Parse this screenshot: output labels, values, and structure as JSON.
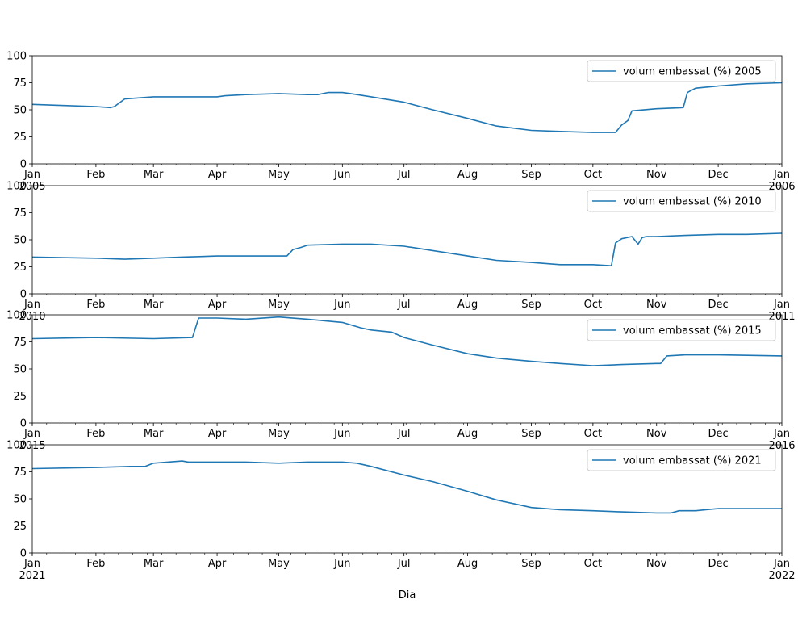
{
  "colors": {
    "line": "#1f77b4",
    "axes": "#000000",
    "legend_border": "#cccccc"
  },
  "xlabel": "Dia",
  "month_labels": [
    "Jan",
    "Feb",
    "Mar",
    "Apr",
    "May",
    "Jun",
    "Jul",
    "Aug",
    "Sep",
    "Oct",
    "Nov",
    "Dec",
    "Jan"
  ],
  "chart_data": [
    {
      "type": "line",
      "xlim": [
        "2005-01-01",
        "2006-01-01"
      ],
      "ylim": [
        0,
        100
      ],
      "yticks": [
        0,
        25,
        50,
        75,
        100
      ],
      "year_labels": [
        "2005",
        "2006"
      ],
      "legend_position": "top-right",
      "series": [
        {
          "name": "volum embassat (%) 2005",
          "x": [
            "2005-01-01",
            "2005-01-15",
            "2005-02-01",
            "2005-02-08",
            "2005-02-10",
            "2005-02-15",
            "2005-03-01",
            "2005-03-15",
            "2005-04-01",
            "2005-04-05",
            "2005-04-15",
            "2005-05-01",
            "2005-05-15",
            "2005-05-20",
            "2005-05-25",
            "2005-06-01",
            "2005-06-05",
            "2005-06-15",
            "2005-07-01",
            "2005-07-15",
            "2005-08-01",
            "2005-08-15",
            "2005-09-01",
            "2005-09-15",
            "2005-10-01",
            "2005-10-08",
            "2005-10-10",
            "2005-10-12",
            "2005-10-15",
            "2005-10-18",
            "2005-10-20",
            "2005-11-01",
            "2005-11-14",
            "2005-11-16",
            "2005-11-20",
            "2005-12-01",
            "2005-12-15",
            "2006-01-01"
          ],
          "y": [
            55,
            54,
            53,
            52,
            53,
            60,
            62,
            62,
            62,
            63,
            64,
            65,
            64,
            64,
            66,
            66,
            65,
            62,
            57,
            50,
            42,
            35,
            31,
            30,
            29,
            29,
            29,
            29,
            36,
            40,
            49,
            51,
            52,
            66,
            70,
            72,
            74,
            75
          ]
        }
      ]
    },
    {
      "type": "line",
      "xlim": [
        "2010-01-01",
        "2011-01-01"
      ],
      "ylim": [
        0,
        100
      ],
      "yticks": [
        0,
        25,
        50,
        75,
        100
      ],
      "year_labels": [
        "2010",
        "2011"
      ],
      "legend_position": "top-right",
      "series": [
        {
          "name": "volum embassat (%) 2010",
          "x": [
            "2010-01-01",
            "2010-02-01",
            "2010-02-15",
            "2010-03-01",
            "2010-03-15",
            "2010-04-01",
            "2010-04-15",
            "2010-05-01",
            "2010-05-05",
            "2010-05-08",
            "2010-05-12",
            "2010-05-15",
            "2010-06-01",
            "2010-06-15",
            "2010-07-01",
            "2010-07-15",
            "2010-08-01",
            "2010-08-15",
            "2010-09-01",
            "2010-09-15",
            "2010-10-01",
            "2010-10-10",
            "2010-10-12",
            "2010-10-15",
            "2010-10-20",
            "2010-10-23",
            "2010-10-25",
            "2010-10-27",
            "2010-11-01",
            "2010-11-15",
            "2010-12-01",
            "2010-12-15",
            "2011-01-01"
          ],
          "y": [
            34,
            33,
            32,
            33,
            34,
            35,
            35,
            35,
            35,
            41,
            43,
            45,
            46,
            46,
            44,
            40,
            35,
            31,
            29,
            27,
            27,
            26,
            47,
            51,
            53,
            46,
            52,
            53,
            53,
            54,
            55,
            55,
            56
          ]
        }
      ]
    },
    {
      "type": "line",
      "xlim": [
        "2015-01-01",
        "2016-01-01"
      ],
      "ylim": [
        0,
        100
      ],
      "yticks": [
        0,
        25,
        50,
        75,
        100
      ],
      "year_labels": [
        "2015",
        "2016"
      ],
      "legend_position": "top-right",
      "series": [
        {
          "name": "volum embassat (%) 2015",
          "x": [
            "2015-01-01",
            "2015-02-01",
            "2015-03-01",
            "2015-03-20",
            "2015-03-23",
            "2015-03-27",
            "2015-04-01",
            "2015-04-15",
            "2015-05-01",
            "2015-05-15",
            "2015-06-01",
            "2015-06-10",
            "2015-06-15",
            "2015-06-25",
            "2015-07-01",
            "2015-07-15",
            "2015-08-01",
            "2015-08-15",
            "2015-09-01",
            "2015-09-15",
            "2015-10-01",
            "2015-10-15",
            "2015-11-01",
            "2015-11-03",
            "2015-11-06",
            "2015-11-15",
            "2015-12-01",
            "2016-01-01"
          ],
          "y": [
            78,
            79,
            78,
            79,
            97,
            97,
            97,
            96,
            98,
            96,
            93,
            88,
            86,
            84,
            79,
            72,
            64,
            60,
            57,
            55,
            53,
            54,
            55,
            55,
            62,
            63,
            63,
            62
          ]
        }
      ]
    },
    {
      "type": "line",
      "xlim": [
        "2021-01-01",
        "2022-01-01"
      ],
      "ylim": [
        0,
        100
      ],
      "yticks": [
        0,
        25,
        50,
        75,
        100
      ],
      "year_labels": [
        "2021",
        "2022"
      ],
      "legend_position": "top-right",
      "series": [
        {
          "name": "volum embassat (%) 2021",
          "x": [
            "2021-01-01",
            "2021-02-01",
            "2021-02-18",
            "2021-02-25",
            "2021-03-01",
            "2021-03-15",
            "2021-03-18",
            "2021-04-01",
            "2021-04-15",
            "2021-05-01",
            "2021-05-15",
            "2021-06-01",
            "2021-06-08",
            "2021-06-15",
            "2021-07-01",
            "2021-07-15",
            "2021-08-01",
            "2021-08-15",
            "2021-09-01",
            "2021-09-15",
            "2021-10-01",
            "2021-10-15",
            "2021-11-01",
            "2021-11-08",
            "2021-11-12",
            "2021-11-20",
            "2021-11-25",
            "2021-12-01",
            "2021-12-15",
            "2022-01-01"
          ],
          "y": [
            78,
            79,
            80,
            80,
            83,
            85,
            84,
            84,
            84,
            83,
            84,
            84,
            83,
            80,
            72,
            66,
            57,
            49,
            42,
            40,
            39,
            38,
            37,
            37,
            39,
            39,
            40,
            41,
            41,
            41
          ]
        }
      ]
    }
  ]
}
